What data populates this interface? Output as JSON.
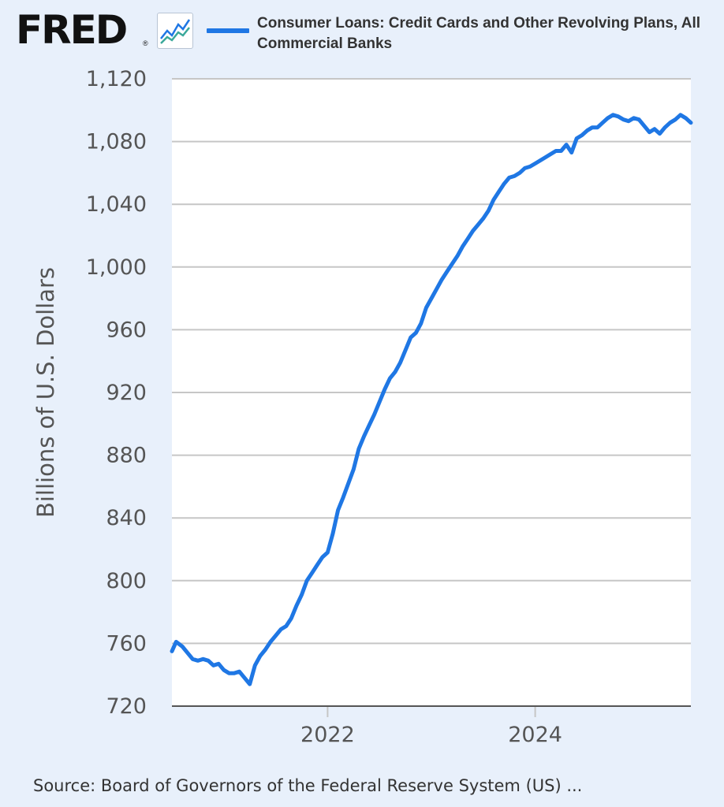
{
  "brand": {
    "logo_text": "FRED",
    "logo_mark": "®",
    "icon": "line-chart-icon"
  },
  "colors": {
    "background": "#e8f0fb",
    "plot_background": "#ffffff",
    "series": "#1f77e4",
    "grid": "#c6c6c6",
    "axis_text": "#555555"
  },
  "source": "Source: Board of Governors of the Federal Reserve System (US) ...",
  "chart_data": {
    "type": "line",
    "title": "",
    "xlabel": "",
    "ylabel": "Billions of U.S. Dollars",
    "ylim": [
      720,
      1120
    ],
    "yticks": [
      720,
      760,
      800,
      840,
      880,
      920,
      960,
      1000,
      1040,
      1080,
      1120
    ],
    "ytick_labels": [
      "720",
      "760",
      "800",
      "840",
      "880",
      "920",
      "960",
      "1,000",
      "1,040",
      "1,080",
      "1,120"
    ],
    "xlim": [
      2020.5,
      2025.5
    ],
    "xticks": [
      2022,
      2024
    ],
    "xtick_labels": [
      "2022",
      "2024"
    ],
    "grid": "horizontal",
    "legend_position": "top",
    "series": [
      {
        "name": "Consumer Loans: Credit Cards and Other Revolving Plans, All Commercial Banks",
        "x": [
          2020.5,
          2020.54,
          2020.6,
          2020.65,
          2020.7,
          2020.75,
          2020.8,
          2020.85,
          2020.9,
          2020.95,
          2021.0,
          2021.05,
          2021.1,
          2021.15,
          2021.2,
          2021.25,
          2021.3,
          2021.35,
          2021.4,
          2021.45,
          2021.5,
          2021.55,
          2021.6,
          2021.65,
          2021.7,
          2021.75,
          2021.8,
          2021.85,
          2021.9,
          2021.95,
          2022.0,
          2022.05,
          2022.1,
          2022.15,
          2022.2,
          2022.25,
          2022.3,
          2022.35,
          2022.4,
          2022.45,
          2022.5,
          2022.55,
          2022.6,
          2022.65,
          2022.7,
          2022.75,
          2022.8,
          2022.85,
          2022.9,
          2022.95,
          2023.0,
          2023.05,
          2023.1,
          2023.15,
          2023.2,
          2023.25,
          2023.3,
          2023.35,
          2023.4,
          2023.45,
          2023.5,
          2023.55,
          2023.6,
          2023.65,
          2023.7,
          2023.75,
          2023.8,
          2023.85,
          2023.9,
          2023.95,
          2024.0,
          2024.05,
          2024.1,
          2024.15,
          2024.2,
          2024.25,
          2024.3,
          2024.35,
          2024.4,
          2024.45,
          2024.5,
          2024.55,
          2024.6,
          2024.65,
          2024.7,
          2024.75,
          2024.8,
          2024.85,
          2024.9,
          2024.95,
          2025.0,
          2025.05,
          2025.1,
          2025.15,
          2025.2,
          2025.25,
          2025.3,
          2025.35,
          2025.4,
          2025.45,
          2025.5
        ],
        "values": [
          755,
          761,
          758,
          754,
          750,
          749,
          750,
          749,
          746,
          747,
          743,
          741,
          741,
          742,
          738,
          734,
          746,
          752,
          756,
          761,
          765,
          769,
          771,
          776,
          784,
          791,
          800,
          805,
          810,
          815,
          818,
          830,
          845,
          853,
          862,
          871,
          884,
          892,
          899,
          906,
          914,
          922,
          929,
          933,
          939,
          947,
          955,
          958,
          964,
          974,
          980,
          986,
          992,
          997,
          1002,
          1007,
          1013,
          1018,
          1023,
          1027,
          1031,
          1036,
          1043,
          1048,
          1053,
          1057,
          1058,
          1060,
          1063,
          1064,
          1066,
          1068,
          1070,
          1072,
          1074,
          1074,
          1078,
          1073,
          1082,
          1084,
          1087,
          1089,
          1089,
          1092,
          1095,
          1097,
          1096,
          1094,
          1093,
          1095,
          1094,
          1090,
          1086,
          1088,
          1085,
          1089,
          1092,
          1094,
          1097,
          1095,
          1092
        ]
      }
    ]
  }
}
